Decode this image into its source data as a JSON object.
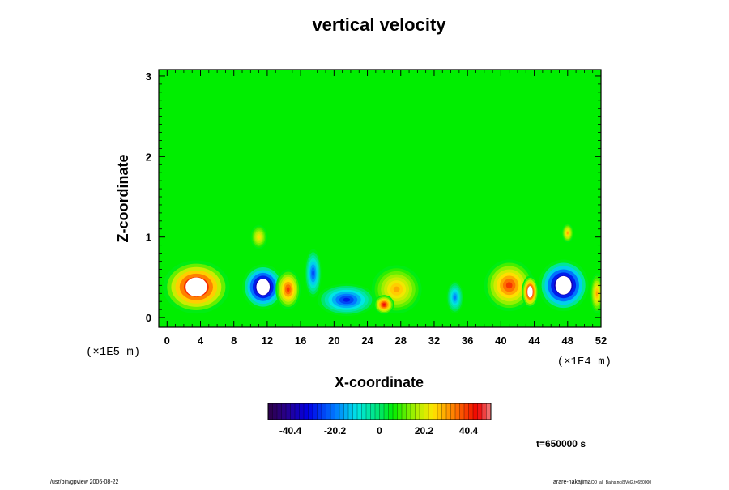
{
  "chart_data": {
    "type": "heatmap",
    "title": "vertical velocity",
    "xlabel": "X-coordinate",
    "ylabel": "Z-coordinate",
    "x_scale_label": "(×1E4 m)",
    "y_scale_label": "(×1E5 m)",
    "xlim": [
      -1,
      52
    ],
    "ylim": [
      -0.12,
      3.08
    ],
    "x_ticks": [
      "0",
      "4",
      "8",
      "12",
      "16",
      "20",
      "24",
      "28",
      "32",
      "36",
      "40",
      "44",
      "48",
      "52"
    ],
    "y_ticks": [
      "0",
      "1",
      "2",
      "3"
    ],
    "colorbar": {
      "min": -50.5,
      "max": 50.5,
      "tick_labels": [
        "-40.4",
        "-20.2",
        "0",
        "20.2",
        "40.4"
      ],
      "tick_values": [
        -40.4,
        -20.2,
        0,
        20.2,
        40.4
      ]
    },
    "background_level": 5,
    "features": [
      {
        "x": 3.5,
        "z": 0.38,
        "rx": 4.0,
        "rz": 0.33,
        "value": 55,
        "label": "updraft"
      },
      {
        "x": 11.5,
        "z": 0.38,
        "rx": 2.5,
        "rz": 0.28,
        "value": -55,
        "label": "downdraft"
      },
      {
        "x": 14.5,
        "z": 0.35,
        "rx": 1.5,
        "rz": 0.25,
        "value": 40,
        "label": "updraft"
      },
      {
        "x": 17.5,
        "z": 0.55,
        "rx": 1.0,
        "rz": 0.3,
        "value": -25,
        "label": "downdraft"
      },
      {
        "x": 21.5,
        "z": 0.22,
        "rx": 3.5,
        "rz": 0.2,
        "value": -30,
        "label": "downdraft"
      },
      {
        "x": 27.5,
        "z": 0.35,
        "rx": 3.0,
        "rz": 0.3,
        "value": 30,
        "label": "updraft"
      },
      {
        "x": 26.0,
        "z": 0.16,
        "rx": 1.2,
        "rz": 0.12,
        "value": 45,
        "label": "updraft"
      },
      {
        "x": 34.5,
        "z": 0.25,
        "rx": 1.0,
        "rz": 0.2,
        "value": -20,
        "label": "downdraft"
      },
      {
        "x": 41.0,
        "z": 0.4,
        "rx": 3.0,
        "rz": 0.32,
        "value": 40,
        "label": "updraft"
      },
      {
        "x": 43.5,
        "z": 0.32,
        "rx": 1.0,
        "rz": 0.2,
        "value": 55,
        "label": "updraft"
      },
      {
        "x": 47.5,
        "z": 0.4,
        "rx": 3.0,
        "rz": 0.32,
        "value": -55,
        "label": "downdraft"
      },
      {
        "x": 51.5,
        "z": 0.3,
        "rx": 0.8,
        "rz": 0.25,
        "value": 30,
        "label": "updraft"
      },
      {
        "x": 11.0,
        "z": 1.0,
        "rx": 1.0,
        "rz": 0.15,
        "value": 25,
        "label": "updraft"
      },
      {
        "x": 48.0,
        "z": 1.05,
        "rx": 0.7,
        "rz": 0.12,
        "value": 30,
        "label": "updraft"
      }
    ]
  },
  "time_label": "t=650000 s",
  "footer": {
    "left": "/usr/bin/gpview 2006-08-22",
    "right_main": "arare-nakajima",
    "right_small": "CO_all_Bains.nc@Vel2.t=650000"
  }
}
